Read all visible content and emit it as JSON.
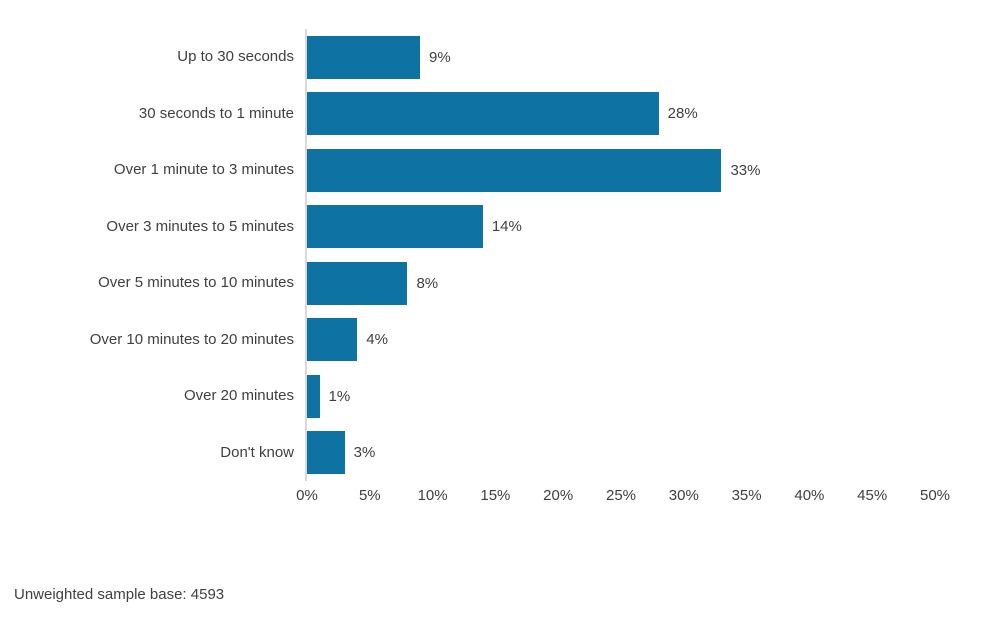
{
  "chart_data": {
    "type": "bar",
    "orientation": "horizontal",
    "title": "",
    "xlabel": "",
    "ylabel": "",
    "categories": [
      "Up to 30 seconds",
      "30 seconds to 1 minute",
      "Over 1 minute to 3 minutes",
      "Over 3 minutes to 5 minutes",
      "Over 5 minutes to 10 minutes",
      "Over 10 minutes to 20 minutes",
      "Over 20 minutes",
      "Don't know"
    ],
    "values": [
      9,
      28,
      33,
      14,
      8,
      4,
      1,
      3
    ],
    "data_labels": [
      "9%",
      "28%",
      "33%",
      "14%",
      "8%",
      "4%",
      "1%",
      "3%"
    ],
    "x_tick_labels": [
      "0%",
      "5%",
      "10%",
      "15%",
      "20%",
      "25%",
      "30%",
      "35%",
      "40%",
      "45%",
      "50%"
    ],
    "xlim": [
      0,
      50
    ],
    "grid": false,
    "legend": "none",
    "bar_color": "#0e73a2",
    "axis_line_color": "#d9d9d9",
    "text_color": "#404040"
  },
  "footer": {
    "note": "Unweighted sample base: 4593"
  }
}
